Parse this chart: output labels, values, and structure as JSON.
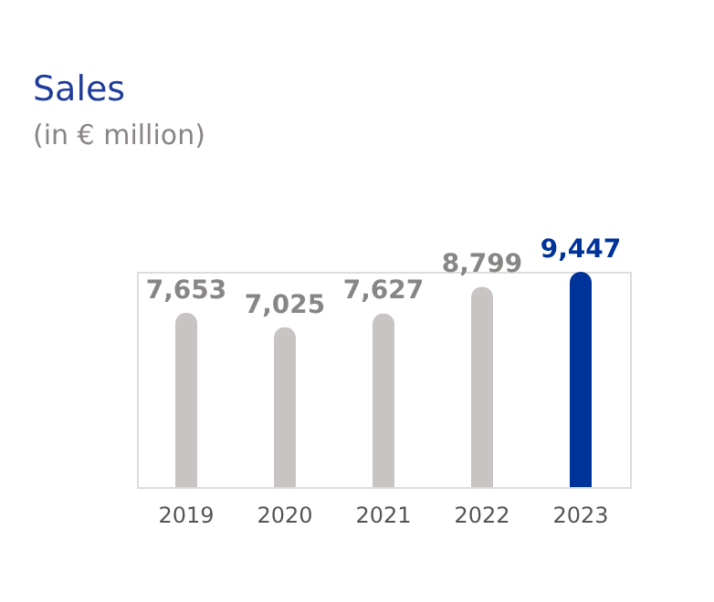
{
  "chart_data": {
    "type": "bar",
    "title": "Sales",
    "subtitle": "(in € million)",
    "categories": [
      "2019",
      "2020",
      "2021",
      "2022",
      "2023"
    ],
    "values": [
      7653,
      7025,
      7627,
      8799,
      9447
    ],
    "colors": [
      "#c9c4c4",
      "#c9c4c4",
      "#c9c4c4",
      "#c9c4c4",
      "#003399"
    ],
    "value_labels": [
      "7,653",
      "7,025",
      "7,627",
      "8,799",
      "9,447"
    ],
    "grid": false
  }
}
